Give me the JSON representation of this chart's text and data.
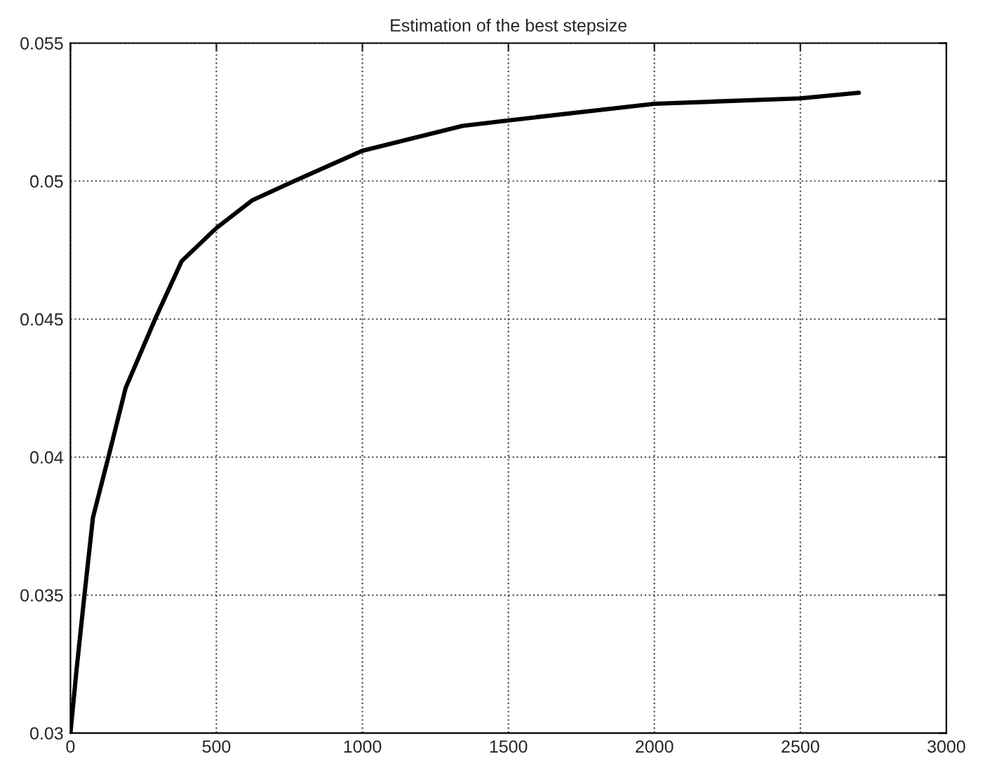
{
  "chart_data": {
    "type": "line",
    "title": "Estimation of the best stepsize",
    "x": [
      0,
      21,
      48,
      77,
      130,
      189,
      290,
      381,
      500,
      622,
      766,
      1000,
      1343,
      1500,
      2000,
      2500,
      2700
    ],
    "series": [
      {
        "color": "#000000",
        "values": [
          0.03,
          0.0323,
          0.035,
          0.0378,
          0.04,
          0.0425,
          0.045,
          0.0471,
          0.0483,
          0.0493,
          0.05,
          0.0511,
          0.052,
          0.0522,
          0.0528,
          0.053,
          0.0532
        ]
      }
    ],
    "xlim": [
      0,
      3000
    ],
    "xticks": [
      0,
      500,
      1000,
      1500,
      2000,
      2500,
      3000
    ],
    "ylim": [
      0.03,
      0.055
    ],
    "yticks": [
      0.03,
      0.035,
      0.04,
      0.045,
      0.05,
      0.055
    ],
    "grid": true
  }
}
